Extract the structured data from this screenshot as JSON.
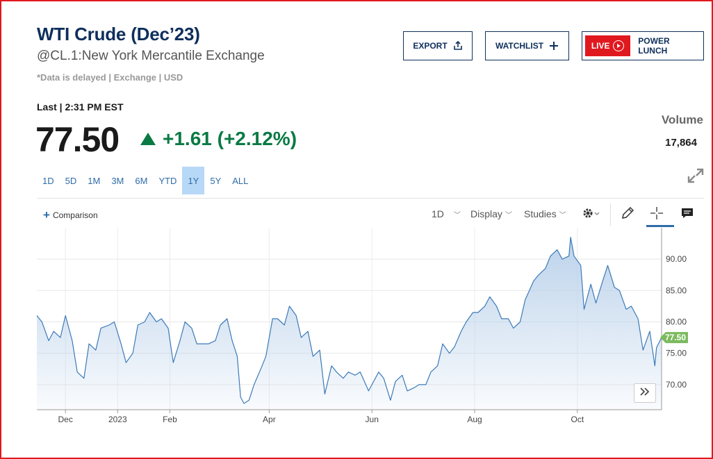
{
  "quote": {
    "title": "WTI Crude (Dec’23)",
    "subtitle": "@CL.1:New York Mercantile Exchange",
    "delayed_note": "*Data is delayed | Exchange | USD",
    "last_label": "Last | 2:31 PM EST",
    "price": "77.50",
    "change": "+1.61 (+2.12%)",
    "volume_label": "Volume",
    "volume_value": "17,864",
    "up_color": "#0a7a44"
  },
  "actions": {
    "export_label": "EXPORT",
    "watchlist_label": "WATCHLIST",
    "live_label": "LIVE",
    "live_show": "POWER LUNCH"
  },
  "ranges": [
    "1D",
    "5D",
    "1M",
    "3M",
    "6M",
    "YTD",
    "1Y",
    "5Y",
    "ALL"
  ],
  "active_range": "1Y",
  "toolbar": {
    "comparison_label": "Comparison",
    "interval_label": "1D",
    "display_label": "Display",
    "studies_label": "Studies"
  },
  "chart_data": {
    "type": "area",
    "series_color": "#3b7ab8",
    "fill_color": "#b8d0ea",
    "last_value_label": "77.50",
    "last_value_color": "#7cba5e",
    "y_ticks": [
      "90.00",
      "85.00",
      "80.00",
      "75.00",
      "70.00"
    ],
    "ylim": [
      66,
      95
    ],
    "x_tick_labels": [
      "Dec",
      "2023",
      "Feb",
      "Apr",
      "Jun",
      "Aug",
      "Oct"
    ],
    "grid": true,
    "y_axis_side": "right",
    "points": [
      [
        "2022-11-14",
        81
      ],
      [
        "2022-11-17",
        80
      ],
      [
        "2022-11-21",
        77
      ],
      [
        "2022-11-24",
        78.5
      ],
      [
        "2022-11-28",
        77.5
      ],
      [
        "2022-12-01",
        81
      ],
      [
        "2022-12-05",
        77
      ],
      [
        "2022-12-08",
        72
      ],
      [
        "2022-12-12",
        71
      ],
      [
        "2022-12-15",
        76.5
      ],
      [
        "2022-12-19",
        75.5
      ],
      [
        "2022-12-22",
        79
      ],
      [
        "2022-12-27",
        79.5
      ],
      [
        "2022-12-30",
        80
      ],
      [
        "2023-01-03",
        76.5
      ],
      [
        "2023-01-06",
        73.5
      ],
      [
        "2023-01-10",
        75
      ],
      [
        "2023-01-13",
        79.5
      ],
      [
        "2023-01-17",
        80
      ],
      [
        "2023-01-20",
        81.5
      ],
      [
        "2023-01-24",
        80
      ],
      [
        "2023-01-27",
        80.5
      ],
      [
        "2023-01-31",
        79
      ],
      [
        "2023-02-03",
        73.5
      ],
      [
        "2023-02-07",
        77
      ],
      [
        "2023-02-10",
        80
      ],
      [
        "2023-02-14",
        79
      ],
      [
        "2023-02-17",
        76.5
      ],
      [
        "2023-02-21",
        76.5
      ],
      [
        "2023-02-24",
        76.5
      ],
      [
        "2023-02-28",
        77
      ],
      [
        "2023-03-03",
        79.5
      ],
      [
        "2023-03-07",
        80.5
      ],
      [
        "2023-03-10",
        77
      ],
      [
        "2023-03-13",
        74.5
      ],
      [
        "2023-03-15",
        68
      ],
      [
        "2023-03-17",
        67
      ],
      [
        "2023-03-20",
        67.5
      ],
      [
        "2023-03-23",
        70
      ],
      [
        "2023-03-27",
        72.5
      ],
      [
        "2023-03-30",
        74.5
      ],
      [
        "2023-04-03",
        80.5
      ],
      [
        "2023-04-06",
        80.5
      ],
      [
        "2023-04-10",
        79.5
      ],
      [
        "2023-04-13",
        82.5
      ],
      [
        "2023-04-17",
        81
      ],
      [
        "2023-04-20",
        77.5
      ],
      [
        "2023-04-24",
        78.5
      ],
      [
        "2023-04-27",
        74.5
      ],
      [
        "2023-05-01",
        75.5
      ],
      [
        "2023-05-04",
        68.5
      ],
      [
        "2023-05-08",
        73
      ],
      [
        "2023-05-11",
        72
      ],
      [
        "2023-05-15",
        71
      ],
      [
        "2023-05-18",
        72
      ],
      [
        "2023-05-22",
        71.5
      ],
      [
        "2023-05-25",
        72
      ],
      [
        "2023-05-30",
        69
      ],
      [
        "2023-06-01",
        70
      ],
      [
        "2023-06-05",
        72
      ],
      [
        "2023-06-08",
        71
      ],
      [
        "2023-06-12",
        67.5
      ],
      [
        "2023-06-15",
        70.5
      ],
      [
        "2023-06-19",
        71.5
      ],
      [
        "2023-06-22",
        69
      ],
      [
        "2023-06-26",
        69.5
      ],
      [
        "2023-06-29",
        70
      ],
      [
        "2023-07-03",
        70
      ],
      [
        "2023-07-06",
        72
      ],
      [
        "2023-07-10",
        73
      ],
      [
        "2023-07-13",
        76.5
      ],
      [
        "2023-07-17",
        75
      ],
      [
        "2023-07-20",
        76
      ],
      [
        "2023-07-24",
        78.5
      ],
      [
        "2023-07-27",
        80
      ],
      [
        "2023-07-31",
        81.5
      ],
      [
        "2023-08-03",
        81.5
      ],
      [
        "2023-08-07",
        82.5
      ],
      [
        "2023-08-10",
        84
      ],
      [
        "2023-08-14",
        82.5
      ],
      [
        "2023-08-17",
        80.5
      ],
      [
        "2023-08-21",
        80.5
      ],
      [
        "2023-08-24",
        79
      ],
      [
        "2023-08-28",
        80
      ],
      [
        "2023-08-31",
        83.5
      ],
      [
        "2023-09-05",
        86.5
      ],
      [
        "2023-09-08",
        87.5
      ],
      [
        "2023-09-12",
        88.5
      ],
      [
        "2023-09-15",
        90.5
      ],
      [
        "2023-09-19",
        91.5
      ],
      [
        "2023-09-22",
        90
      ],
      [
        "2023-09-26",
        90.5
      ],
      [
        "2023-09-27",
        93.5
      ],
      [
        "2023-09-29",
        90.5
      ],
      [
        "2023-10-03",
        89
      ],
      [
        "2023-10-05",
        82
      ],
      [
        "2023-10-09",
        86
      ],
      [
        "2023-10-12",
        83
      ],
      [
        "2023-10-16",
        86.5
      ],
      [
        "2023-10-19",
        89
      ],
      [
        "2023-10-23",
        85.5
      ],
      [
        "2023-10-26",
        85
      ],
      [
        "2023-10-30",
        82
      ],
      [
        "2023-11-02",
        82.5
      ],
      [
        "2023-11-06",
        80.5
      ],
      [
        "2023-11-09",
        75.5
      ],
      [
        "2023-11-13",
        78.5
      ],
      [
        "2023-11-16",
        73
      ],
      [
        "2023-11-17",
        75.9
      ],
      [
        "2023-11-20",
        77.5
      ]
    ]
  }
}
